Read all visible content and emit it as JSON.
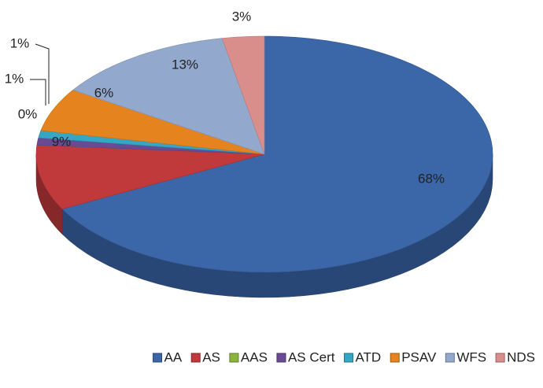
{
  "chart_data": {
    "type": "pie3d",
    "categories": [
      "AA",
      "AS",
      "AAS",
      "AS Cert",
      "ATD",
      "PSAV",
      "WFS",
      "NDS"
    ],
    "values": [
      68,
      9,
      0,
      1,
      1,
      6,
      13,
      3
    ],
    "value_labels": [
      "68%",
      "9%",
      "0%",
      "1%",
      "1%",
      "6%",
      "13%",
      "3%"
    ],
    "colors": [
      "#3b66a8",
      "#c0393b",
      "#8db33f",
      "#6b4a94",
      "#35a6c4",
      "#e5841f",
      "#93a8cd",
      "#d98e8c"
    ],
    "legend": "bottom"
  }
}
